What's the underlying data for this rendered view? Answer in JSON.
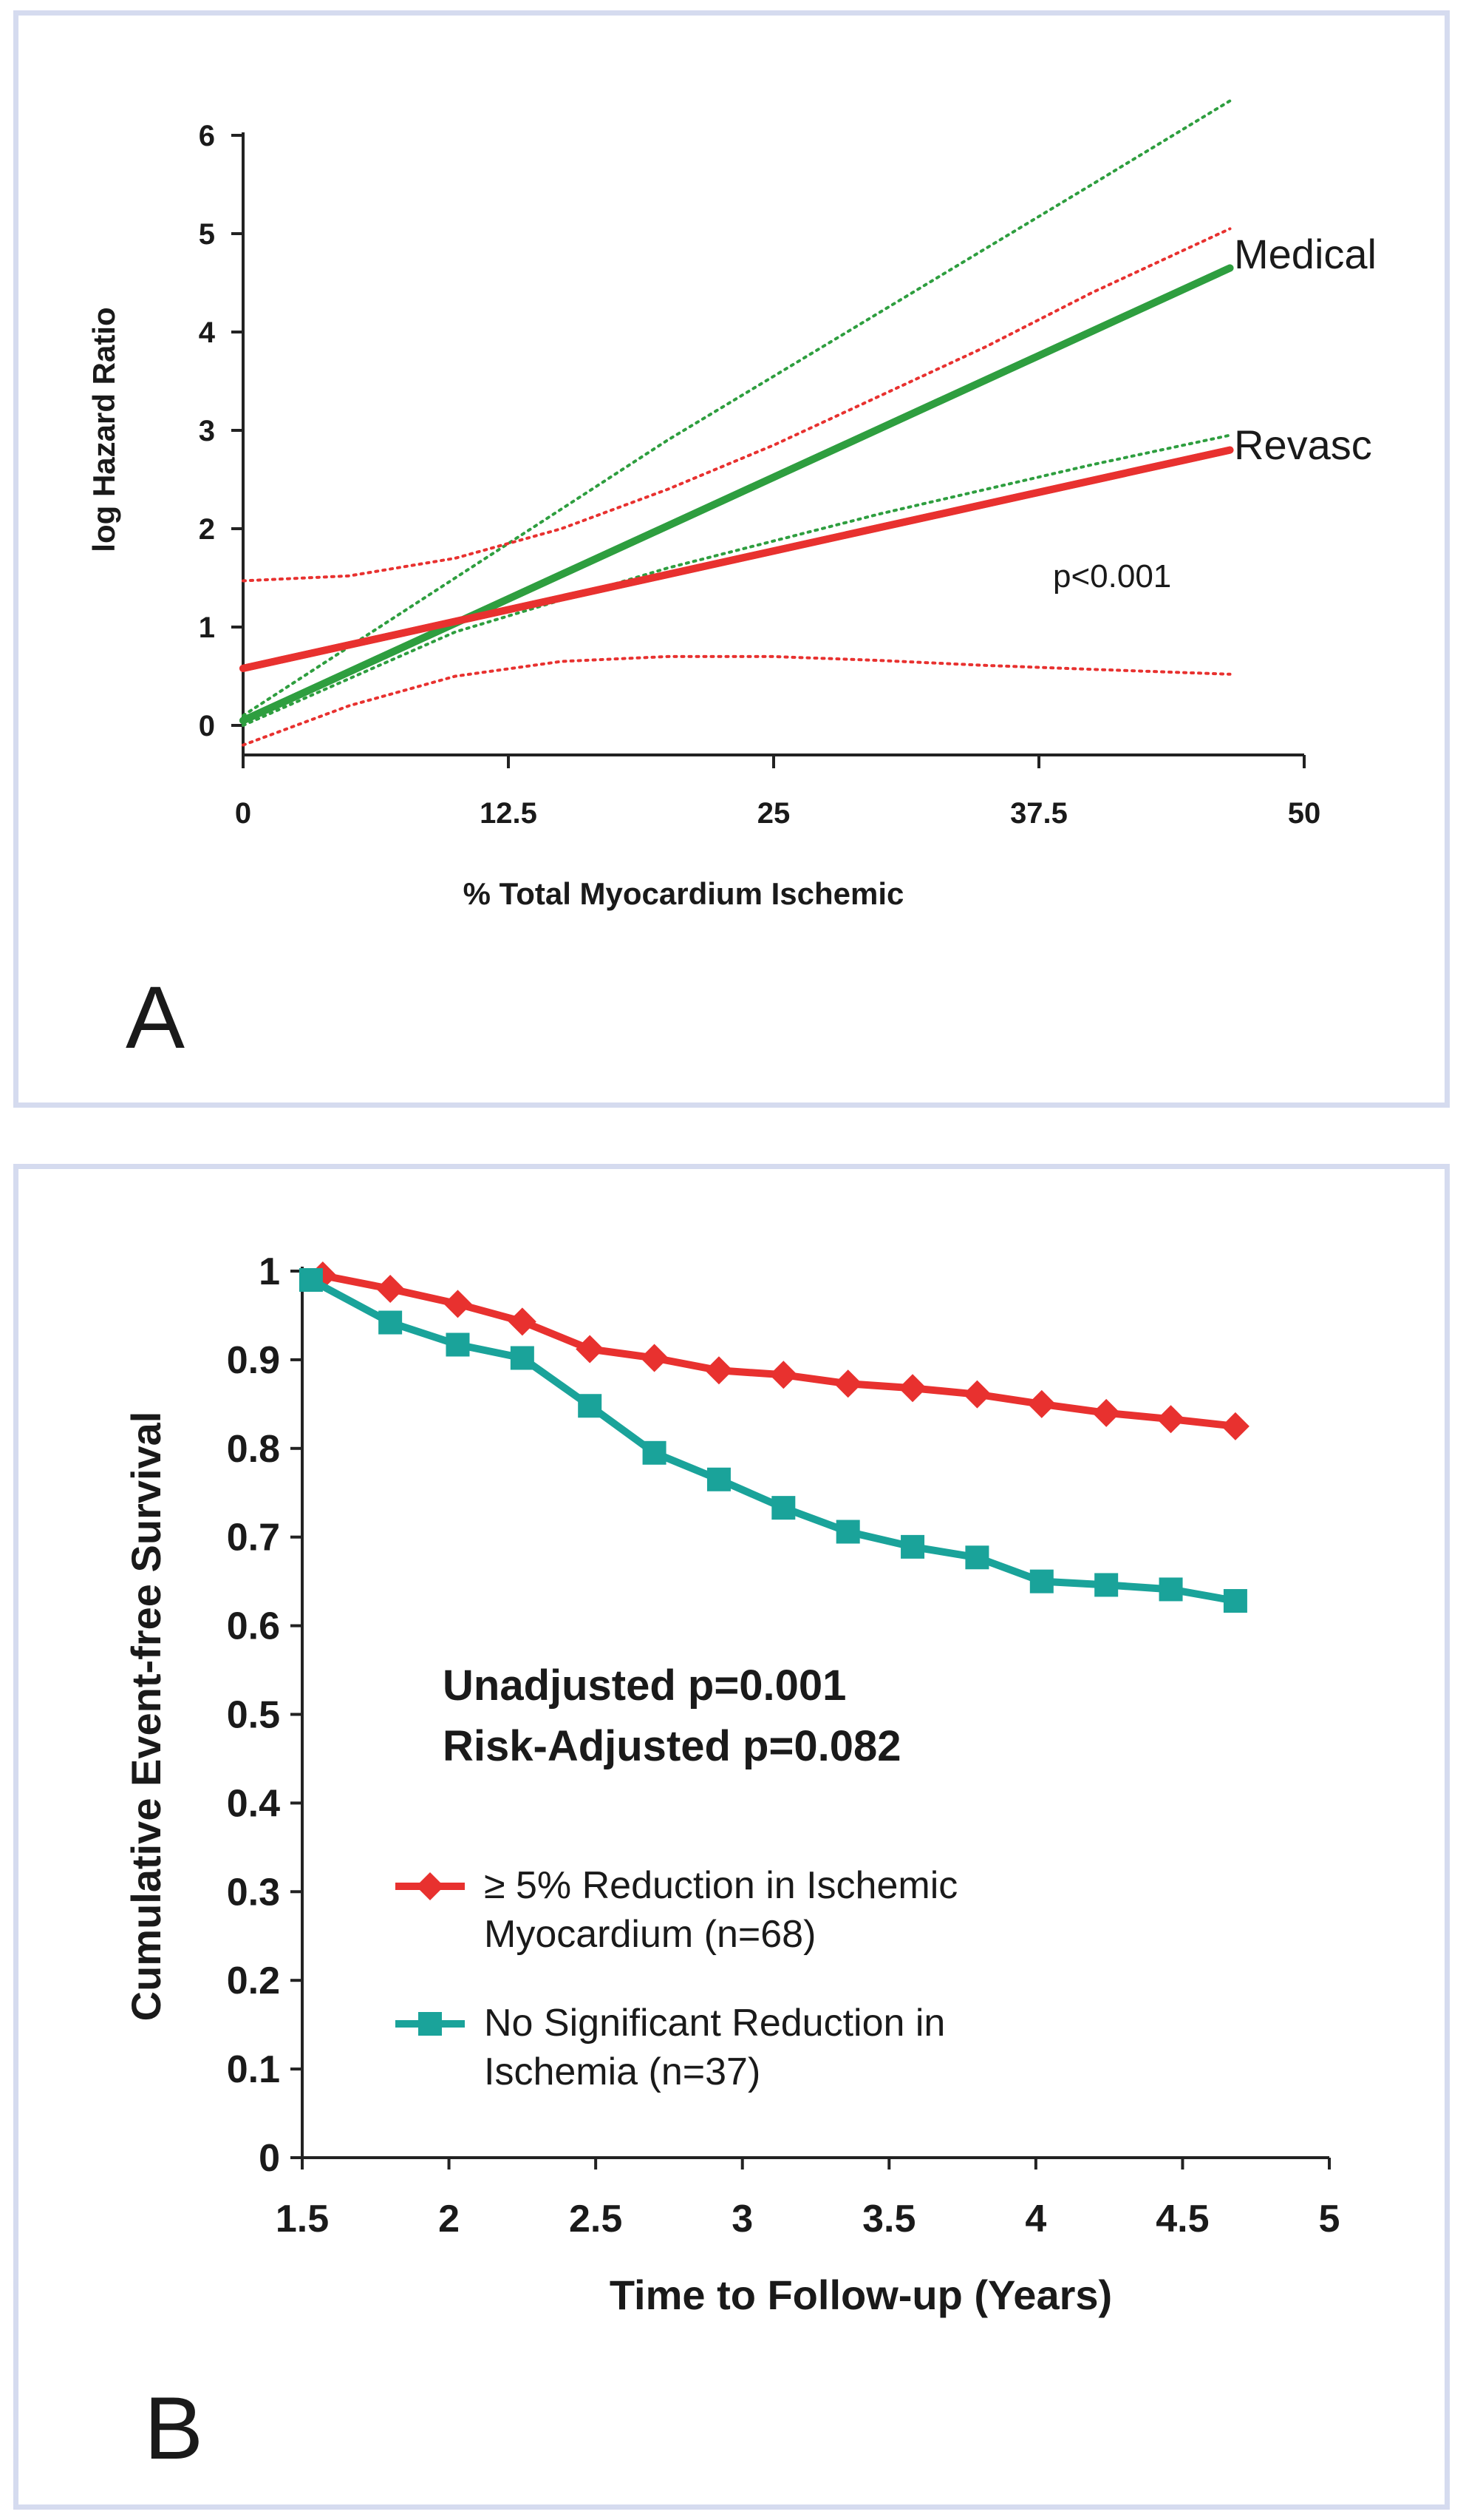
{
  "colors": {
    "red": "#e8312f",
    "green": "#2e9e3f",
    "teal": "#1aa39a",
    "panel_border": "#d5dbef",
    "text": "#1a1a1a"
  },
  "chart_data": [
    {
      "type": "line",
      "panel_label": "A",
      "xlabel": "% Total Myocardium Ischemic",
      "ylabel": "log Hazard Ratio",
      "xlim": [
        0,
        50
      ],
      "ylim": [
        0,
        6
      ],
      "x_ticks": [
        "0",
        "12.5",
        "25",
        "37.5",
        "50"
      ],
      "y_ticks": [
        "0",
        "1",
        "2",
        "3",
        "4",
        "5",
        "6"
      ],
      "annotation": "p<0.001",
      "series": [
        {
          "name": "Medical",
          "color": "green",
          "style": "solid",
          "x": [
            0,
            46.5
          ],
          "y": [
            0.05,
            4.65
          ]
        },
        {
          "name": "Medical CI upper",
          "color": "green",
          "style": "dotted",
          "x": [
            0,
            10,
            20,
            30,
            40,
            46.5
          ],
          "y": [
            0.1,
            1.5,
            2.9,
            4.2,
            5.5,
            6.35
          ]
        },
        {
          "name": "Medical CI lower",
          "color": "green",
          "style": "dotted",
          "x": [
            0,
            10,
            20,
            30,
            40,
            46.5
          ],
          "y": [
            0.0,
            0.95,
            1.6,
            2.15,
            2.65,
            2.95
          ]
        },
        {
          "name": "Revasc",
          "color": "red",
          "style": "solid",
          "x": [
            0,
            46.5
          ],
          "y": [
            0.58,
            2.8
          ]
        },
        {
          "name": "Revasc CI upper",
          "color": "red",
          "style": "dotted",
          "x": [
            0,
            5,
            10,
            15,
            20,
            25,
            30,
            35,
            40,
            46.5
          ],
          "y": [
            1.47,
            1.52,
            1.7,
            2.0,
            2.4,
            2.85,
            3.35,
            3.85,
            4.4,
            5.05
          ]
        },
        {
          "name": "Revasc CI lower",
          "color": "red",
          "style": "dotted",
          "x": [
            0,
            5,
            10,
            15,
            20,
            25,
            30,
            35,
            40,
            46.5
          ],
          "y": [
            -0.2,
            0.2,
            0.5,
            0.65,
            0.7,
            0.7,
            0.66,
            0.61,
            0.57,
            0.52
          ]
        }
      ],
      "line_labels": [
        "Medical",
        "Revasc"
      ]
    },
    {
      "type": "line",
      "panel_label": "B",
      "xlabel": "Time to Follow-up (Years)",
      "ylabel": "Cumulative Event-free Survival",
      "xlim": [
        1.5,
        5
      ],
      "ylim": [
        0,
        1
      ],
      "x_ticks": [
        "1.5",
        "2",
        "2.5",
        "3",
        "3.5",
        "4",
        "4.5",
        "5"
      ],
      "y_ticks": [
        "0",
        "0.1",
        "0.2",
        "0.3",
        "0.4",
        "0.5",
        "0.6",
        "0.7",
        "0.8",
        "0.9",
        "1"
      ],
      "annotations": [
        "Unadjusted p=0.001",
        "Risk-Adjusted p=0.082"
      ],
      "series": [
        {
          "name": "≥ 5% Reduction in Ischemic Myocardium (n=68)",
          "legend_lines": [
            "≥ 5% Reduction in Ischemic",
            "Myocardium (n=68)"
          ],
          "color": "red",
          "marker": "diamond",
          "x": [
            1.57,
            1.8,
            2.03,
            2.25,
            2.48,
            2.7,
            2.92,
            3.14,
            3.36,
            3.58,
            3.8,
            4.02,
            4.24,
            4.46,
            4.68
          ],
          "y": [
            0.995,
            0.98,
            0.963,
            0.943,
            0.912,
            0.902,
            0.888,
            0.883,
            0.873,
            0.868,
            0.861,
            0.85,
            0.84,
            0.833,
            0.825
          ]
        },
        {
          "name": "No Significant Reduction in Ischemia (n=37)",
          "legend_lines": [
            "No Significant Reduction in",
            "Ischemia (n=37)"
          ],
          "color": "teal",
          "marker": "square",
          "x": [
            1.53,
            1.8,
            2.03,
            2.25,
            2.48,
            2.7,
            2.92,
            3.14,
            3.36,
            3.58,
            3.8,
            4.02,
            4.24,
            4.46,
            4.68
          ],
          "y": [
            0.99,
            0.942,
            0.917,
            0.902,
            0.848,
            0.795,
            0.765,
            0.733,
            0.706,
            0.689,
            0.677,
            0.65,
            0.646,
            0.641,
            0.628
          ]
        }
      ]
    }
  ]
}
